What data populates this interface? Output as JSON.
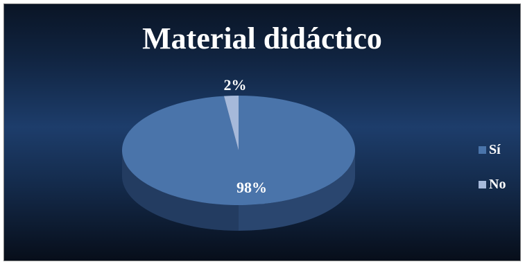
{
  "chart_data": {
    "type": "pie",
    "title": "Material didáctico",
    "categories": [
      "Sí",
      "No"
    ],
    "values": [
      98,
      2
    ],
    "data_labels": [
      "98%",
      "2%"
    ],
    "colors": [
      "#4a74aa",
      "#a6b9da"
    ],
    "legend_position": "right"
  }
}
